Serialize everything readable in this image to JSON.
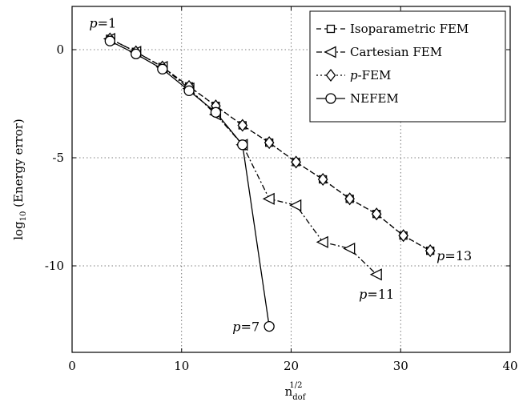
{
  "chart_data": {
    "type": "line",
    "title": "",
    "xlabel": "n",
    "xlabel_sub": "dof",
    "xlabel_sup": "1/2",
    "ylabel_prefix": "log",
    "ylabel_sub": "10",
    "ylabel_main": " (Energy error)",
    "xlim": [
      0,
      40
    ],
    "ylim": [
      -14,
      2
    ],
    "xticks": [
      0,
      10,
      20,
      30,
      40
    ],
    "yticks": [
      0,
      -5,
      -10
    ],
    "xtick_labels": [
      "0",
      "10",
      "20",
      "30",
      "40"
    ],
    "ytick_labels": [
      "0",
      "-5",
      "-10"
    ],
    "grid": true,
    "legend_position": "top-right",
    "series": [
      {
        "name": "Isoparametric FEM",
        "marker": "square",
        "linestyle": "dashed",
        "x": [
          3.46,
          5.83,
          8.25,
          10.68,
          13.12,
          15.56,
          18.0,
          20.45,
          22.9,
          25.35,
          27.8,
          30.25,
          32.7
        ],
        "y": [
          0.5,
          -0.1,
          -0.8,
          -1.7,
          -2.6,
          -3.5,
          -4.3,
          -5.2,
          -6.0,
          -6.9,
          -7.6,
          -8.6,
          -9.3
        ]
      },
      {
        "name": "Cartesian FEM",
        "marker": "triangle-left",
        "linestyle": "dashdot",
        "x": [
          3.46,
          5.83,
          8.25,
          10.68,
          13.12,
          15.56,
          18.0,
          20.45,
          22.9,
          25.35,
          27.8
        ],
        "y": [
          0.5,
          -0.1,
          -0.8,
          -1.8,
          -3.0,
          -4.4,
          -6.9,
          -7.2,
          -8.9,
          -9.2,
          -10.4
        ]
      },
      {
        "name": "p-FEM",
        "marker": "diamond",
        "linestyle": "dotted",
        "x": [
          3.46,
          5.83,
          8.25,
          10.68,
          13.12,
          15.56,
          18.0,
          20.45,
          22.9,
          25.35,
          27.8,
          30.25,
          32.7
        ],
        "y": [
          0.5,
          -0.1,
          -0.8,
          -1.7,
          -2.6,
          -3.5,
          -4.3,
          -5.2,
          -6.0,
          -6.9,
          -7.6,
          -8.6,
          -9.3
        ]
      },
      {
        "name": "NEFEM",
        "marker": "circle",
        "linestyle": "solid",
        "x": [
          3.46,
          5.83,
          8.25,
          10.68,
          13.12,
          15.56,
          18.0
        ],
        "y": [
          0.4,
          -0.2,
          -0.9,
          -1.9,
          -2.9,
          -4.4,
          -12.8
        ]
      }
    ],
    "legend_labels": [
      {
        "prefix": "",
        "italic": "",
        "rest": "Isoparametric FEM"
      },
      {
        "prefix": "",
        "italic": "",
        "rest": "Cartesian FEM"
      },
      {
        "prefix": "",
        "italic": "p",
        "rest": "-FEM"
      },
      {
        "prefix": "",
        "italic": "",
        "rest": "NEFEM"
      }
    ],
    "annotations": [
      {
        "italic": "p",
        "rest": "=1",
        "x": 3.46,
        "y": 0.5,
        "anchor": "above-left"
      },
      {
        "italic": "p",
        "rest": "=7",
        "x": 18.0,
        "y": -12.8,
        "anchor": "left"
      },
      {
        "italic": "p",
        "rest": "=11",
        "x": 27.8,
        "y": -10.4,
        "anchor": "below"
      },
      {
        "italic": "p",
        "rest": "=13",
        "x": 32.7,
        "y": -9.3,
        "anchor": "right"
      }
    ]
  }
}
